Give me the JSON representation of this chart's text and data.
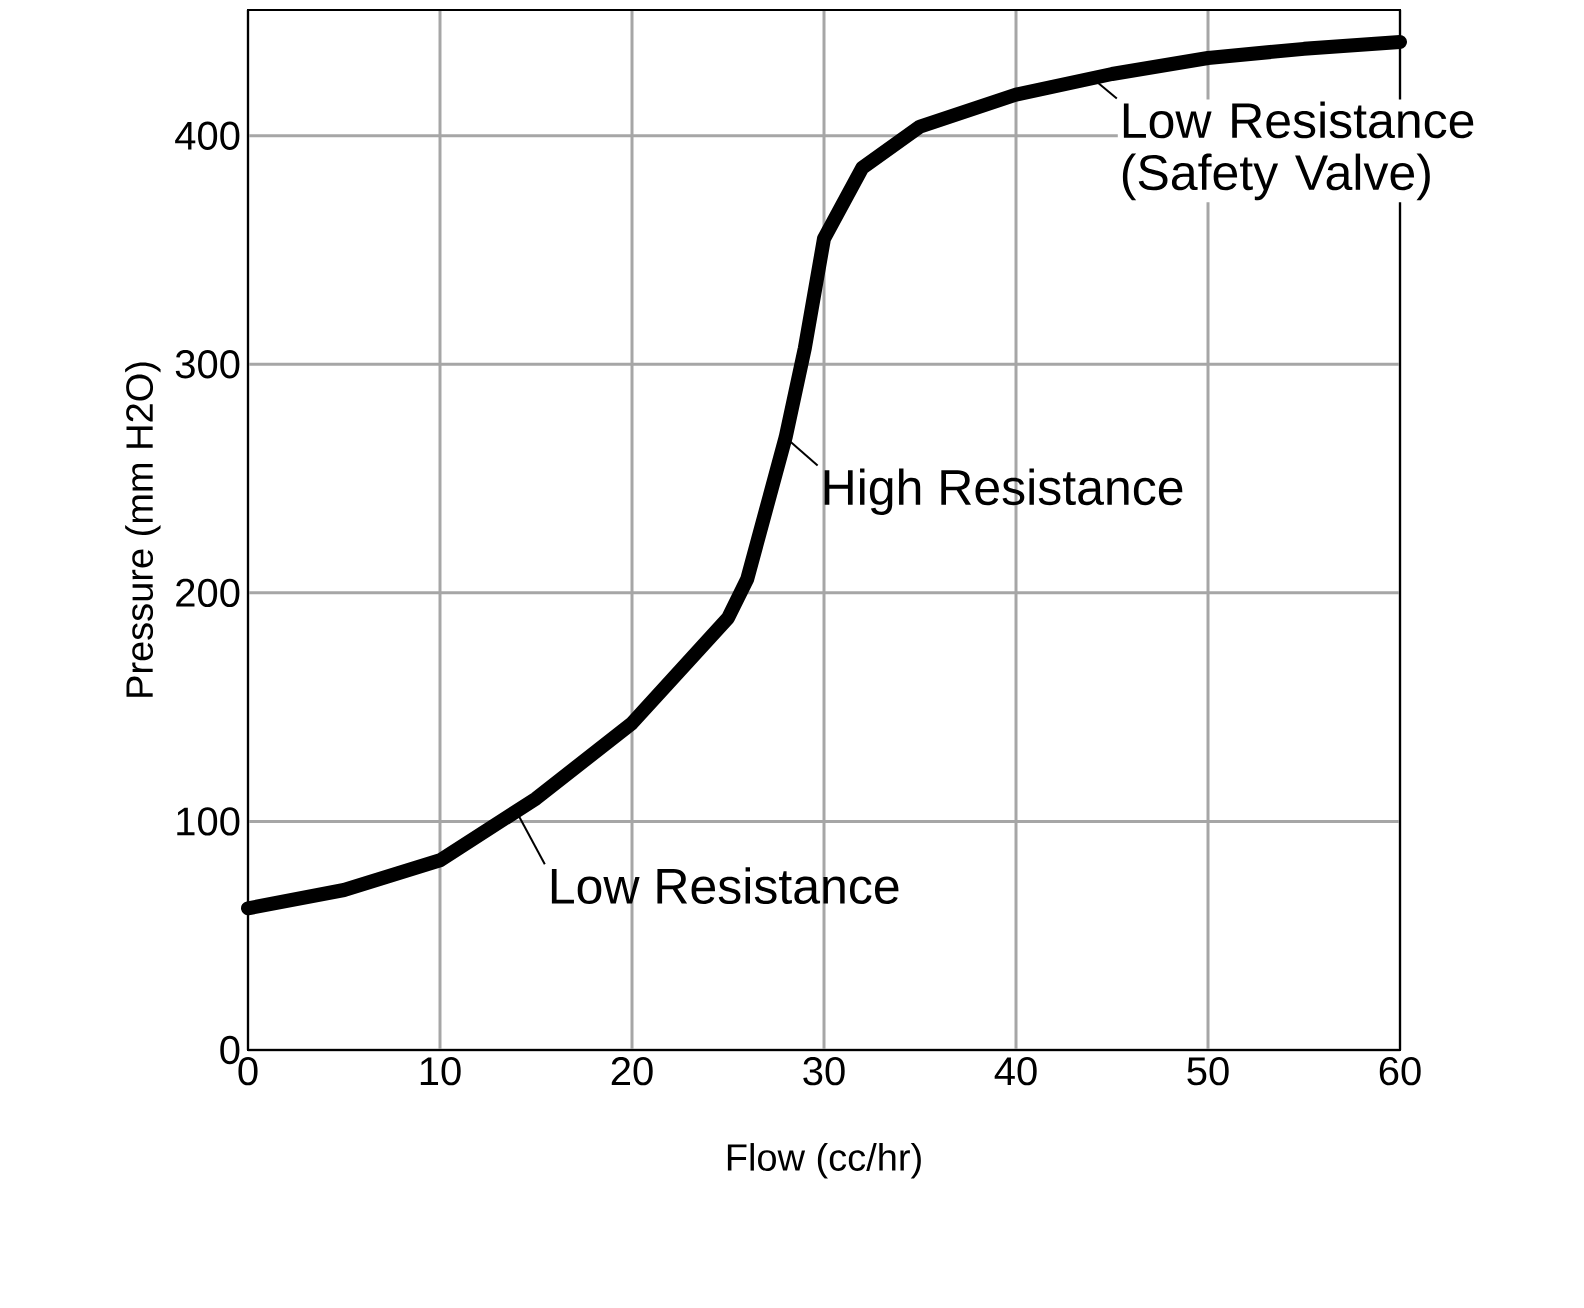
{
  "chart_data": {
    "type": "line",
    "xlabel": "Flow (cc/hr)",
    "ylabel": "Pressure (mm H2O)",
    "x": [
      0,
      5,
      10,
      15,
      20,
      25,
      26,
      28,
      29,
      30,
      32,
      35,
      40,
      45,
      50,
      55,
      60
    ],
    "series": [
      {
        "color": "#000000",
        "values": [
          62,
          70,
          83,
          110,
          143,
          189,
          206,
          268,
          307,
          355,
          386,
          404,
          418,
          427,
          434,
          438,
          441
        ]
      }
    ],
    "xlim": [
      0,
      60
    ],
    "ylim": [
      0,
      455
    ],
    "xticks": [
      0,
      10,
      20,
      30,
      40,
      50,
      60
    ],
    "yticks": [
      0,
      100,
      200,
      300,
      400
    ],
    "grid": true,
    "marker": "none",
    "line_style": "solid",
    "annotations": [
      {
        "text": "Low Resistance (Safety Valve)",
        "x": 44,
        "y": 425
      },
      {
        "text": "High Resistance",
        "x": 28,
        "y": 268
      },
      {
        "text": "Low Resistance",
        "x": 14,
        "y": 104
      }
    ]
  }
}
